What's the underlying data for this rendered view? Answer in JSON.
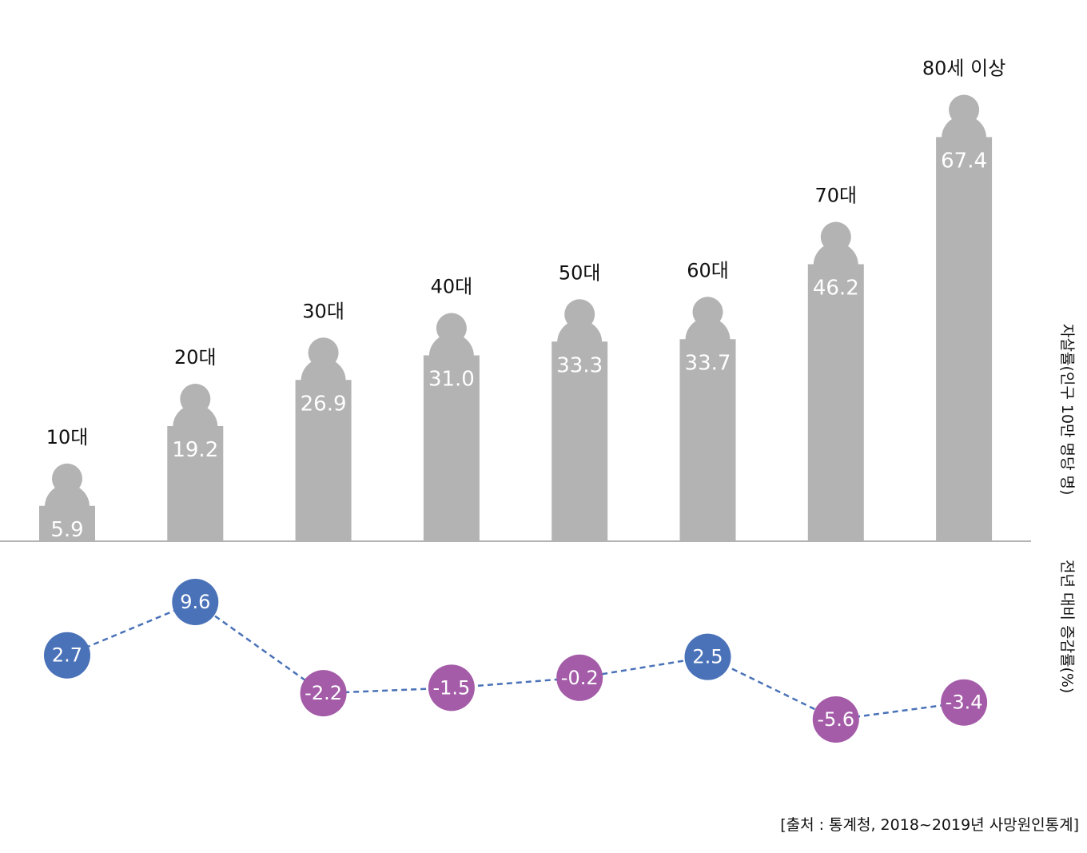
{
  "chart_data": [
    {
      "type": "bar",
      "categories": [
        "10대",
        "20대",
        "30대",
        "40대",
        "50대",
        "60대",
        "70대",
        "80세 이상"
      ],
      "values": [
        5.9,
        19.2,
        26.9,
        31.0,
        33.3,
        33.7,
        46.2,
        67.4
      ],
      "value_labels": [
        "5.9",
        "19.2",
        "26.9",
        "31.0",
        "33.3",
        "33.7",
        "46.2",
        "67.4"
      ],
      "ylabel": "자살률(인구 10만 명당 명)",
      "ylim": [
        0,
        70
      ],
      "grid": false,
      "bar_color": "#b3b3b3"
    },
    {
      "type": "line",
      "categories": [
        "10대",
        "20대",
        "30대",
        "40대",
        "50대",
        "60대",
        "70대",
        "80세 이상"
      ],
      "values": [
        2.7,
        9.6,
        -2.2,
        -1.5,
        -0.2,
        2.5,
        -5.6,
        -3.4
      ],
      "value_labels": [
        "2.7",
        "9.6",
        "-2.2",
        "-1.5",
        "-0.2",
        "2.5",
        "-5.6",
        "-3.4"
      ],
      "ylabel": "전년 대비 증감률(%)",
      "ylim": [
        -6,
        10
      ],
      "grid": false,
      "positive_color": "#4a72b8",
      "negative_color": "#a45ba8",
      "line_color": "#4a72b8"
    }
  ],
  "source": "[출처 : 통계청, 2018~2019년 사망원인통계]"
}
